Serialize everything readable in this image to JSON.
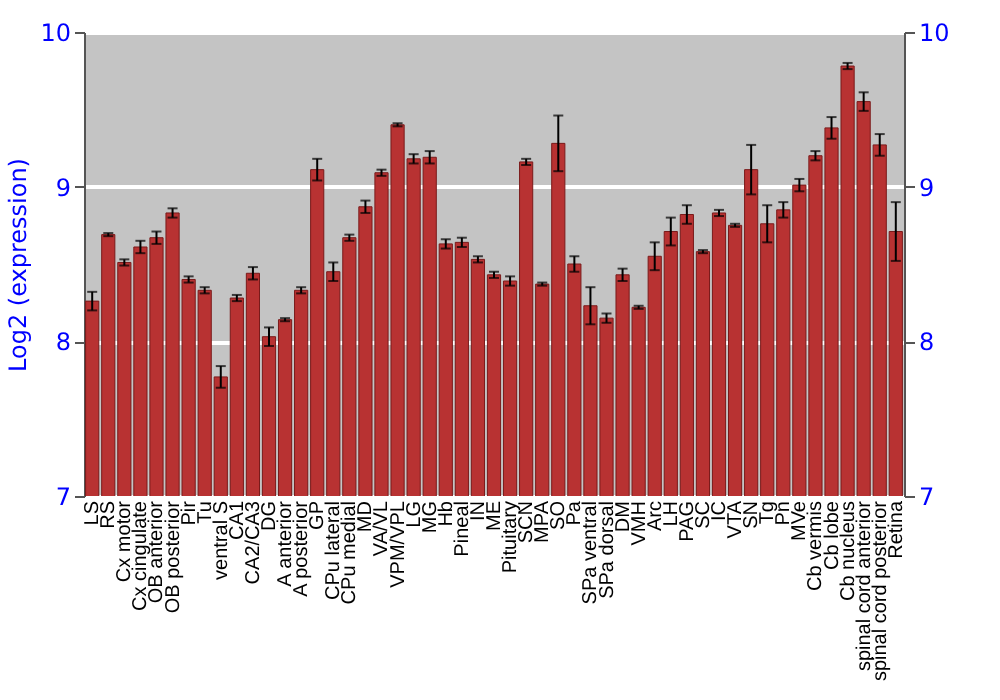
{
  "chart_data": {
    "type": "bar",
    "ylabel": "Log2 (expression)",
    "categories": [
      "LS",
      "RS",
      "Cx motor",
      "Cx cingulate",
      "OB anterior",
      "OB posterior",
      "Pir",
      "Tu",
      "ventral S",
      "CA1",
      "CA2/CA3",
      "DG",
      "A anterior",
      "A posterior",
      "GP",
      "CPu lateral",
      "CPu medial",
      "MD",
      "VA/VL",
      "VPM/VPL",
      "LG",
      "MG",
      "Hb",
      "Pineal",
      "IN",
      "ME",
      "Pituitary",
      "SCN",
      "MPA",
      "SO",
      "Pa",
      "SPa ventral",
      "SPa dorsal",
      "DM",
      "VMH",
      "Arc",
      "LH",
      "PAG",
      "SC",
      "IC",
      "VTA",
      "SN",
      "Tg",
      "Pn",
      "MVe",
      "Cb vermis",
      "Cb lobe",
      "Cb nucleus",
      "spinal cord anterior",
      "spinal cord posterior",
      "Retina"
    ],
    "values": [
      8.26,
      8.69,
      8.51,
      8.61,
      8.67,
      8.83,
      8.4,
      8.33,
      7.77,
      8.28,
      8.44,
      8.03,
      8.14,
      8.33,
      9.11,
      8.45,
      8.67,
      8.87,
      9.09,
      9.4,
      9.18,
      9.19,
      8.63,
      8.64,
      8.53,
      8.43,
      8.39,
      9.16,
      8.37,
      9.28,
      8.5,
      8.23,
      8.15,
      8.43,
      8.22,
      8.55,
      8.71,
      8.82,
      8.58,
      8.83,
      8.75,
      9.11,
      8.76,
      8.85,
      9.01,
      9.2,
      9.38,
      9.78,
      9.55,
      9.27,
      8.71
    ],
    "errors": [
      0.06,
      0.01,
      0.02,
      0.04,
      0.04,
      0.03,
      0.02,
      0.02,
      0.07,
      0.02,
      0.04,
      0.06,
      0.01,
      0.02,
      0.07,
      0.06,
      0.02,
      0.04,
      0.02,
      0.01,
      0.03,
      0.04,
      0.03,
      0.03,
      0.02,
      0.02,
      0.03,
      0.02,
      0.01,
      0.18,
      0.05,
      0.12,
      0.03,
      0.04,
      0.01,
      0.09,
      0.09,
      0.06,
      0.01,
      0.02,
      0.01,
      0.16,
      0.12,
      0.05,
      0.04,
      0.03,
      0.07,
      0.02,
      0.06,
      0.07,
      0.19
    ],
    "color": "#b83232",
    "ylim": [
      7,
      10
    ],
    "yticks": [
      7,
      8,
      9,
      10
    ],
    "y2lim": [
      7,
      10
    ],
    "y2ticks": [
      7,
      8,
      9,
      10
    ],
    "grid": "y"
  }
}
